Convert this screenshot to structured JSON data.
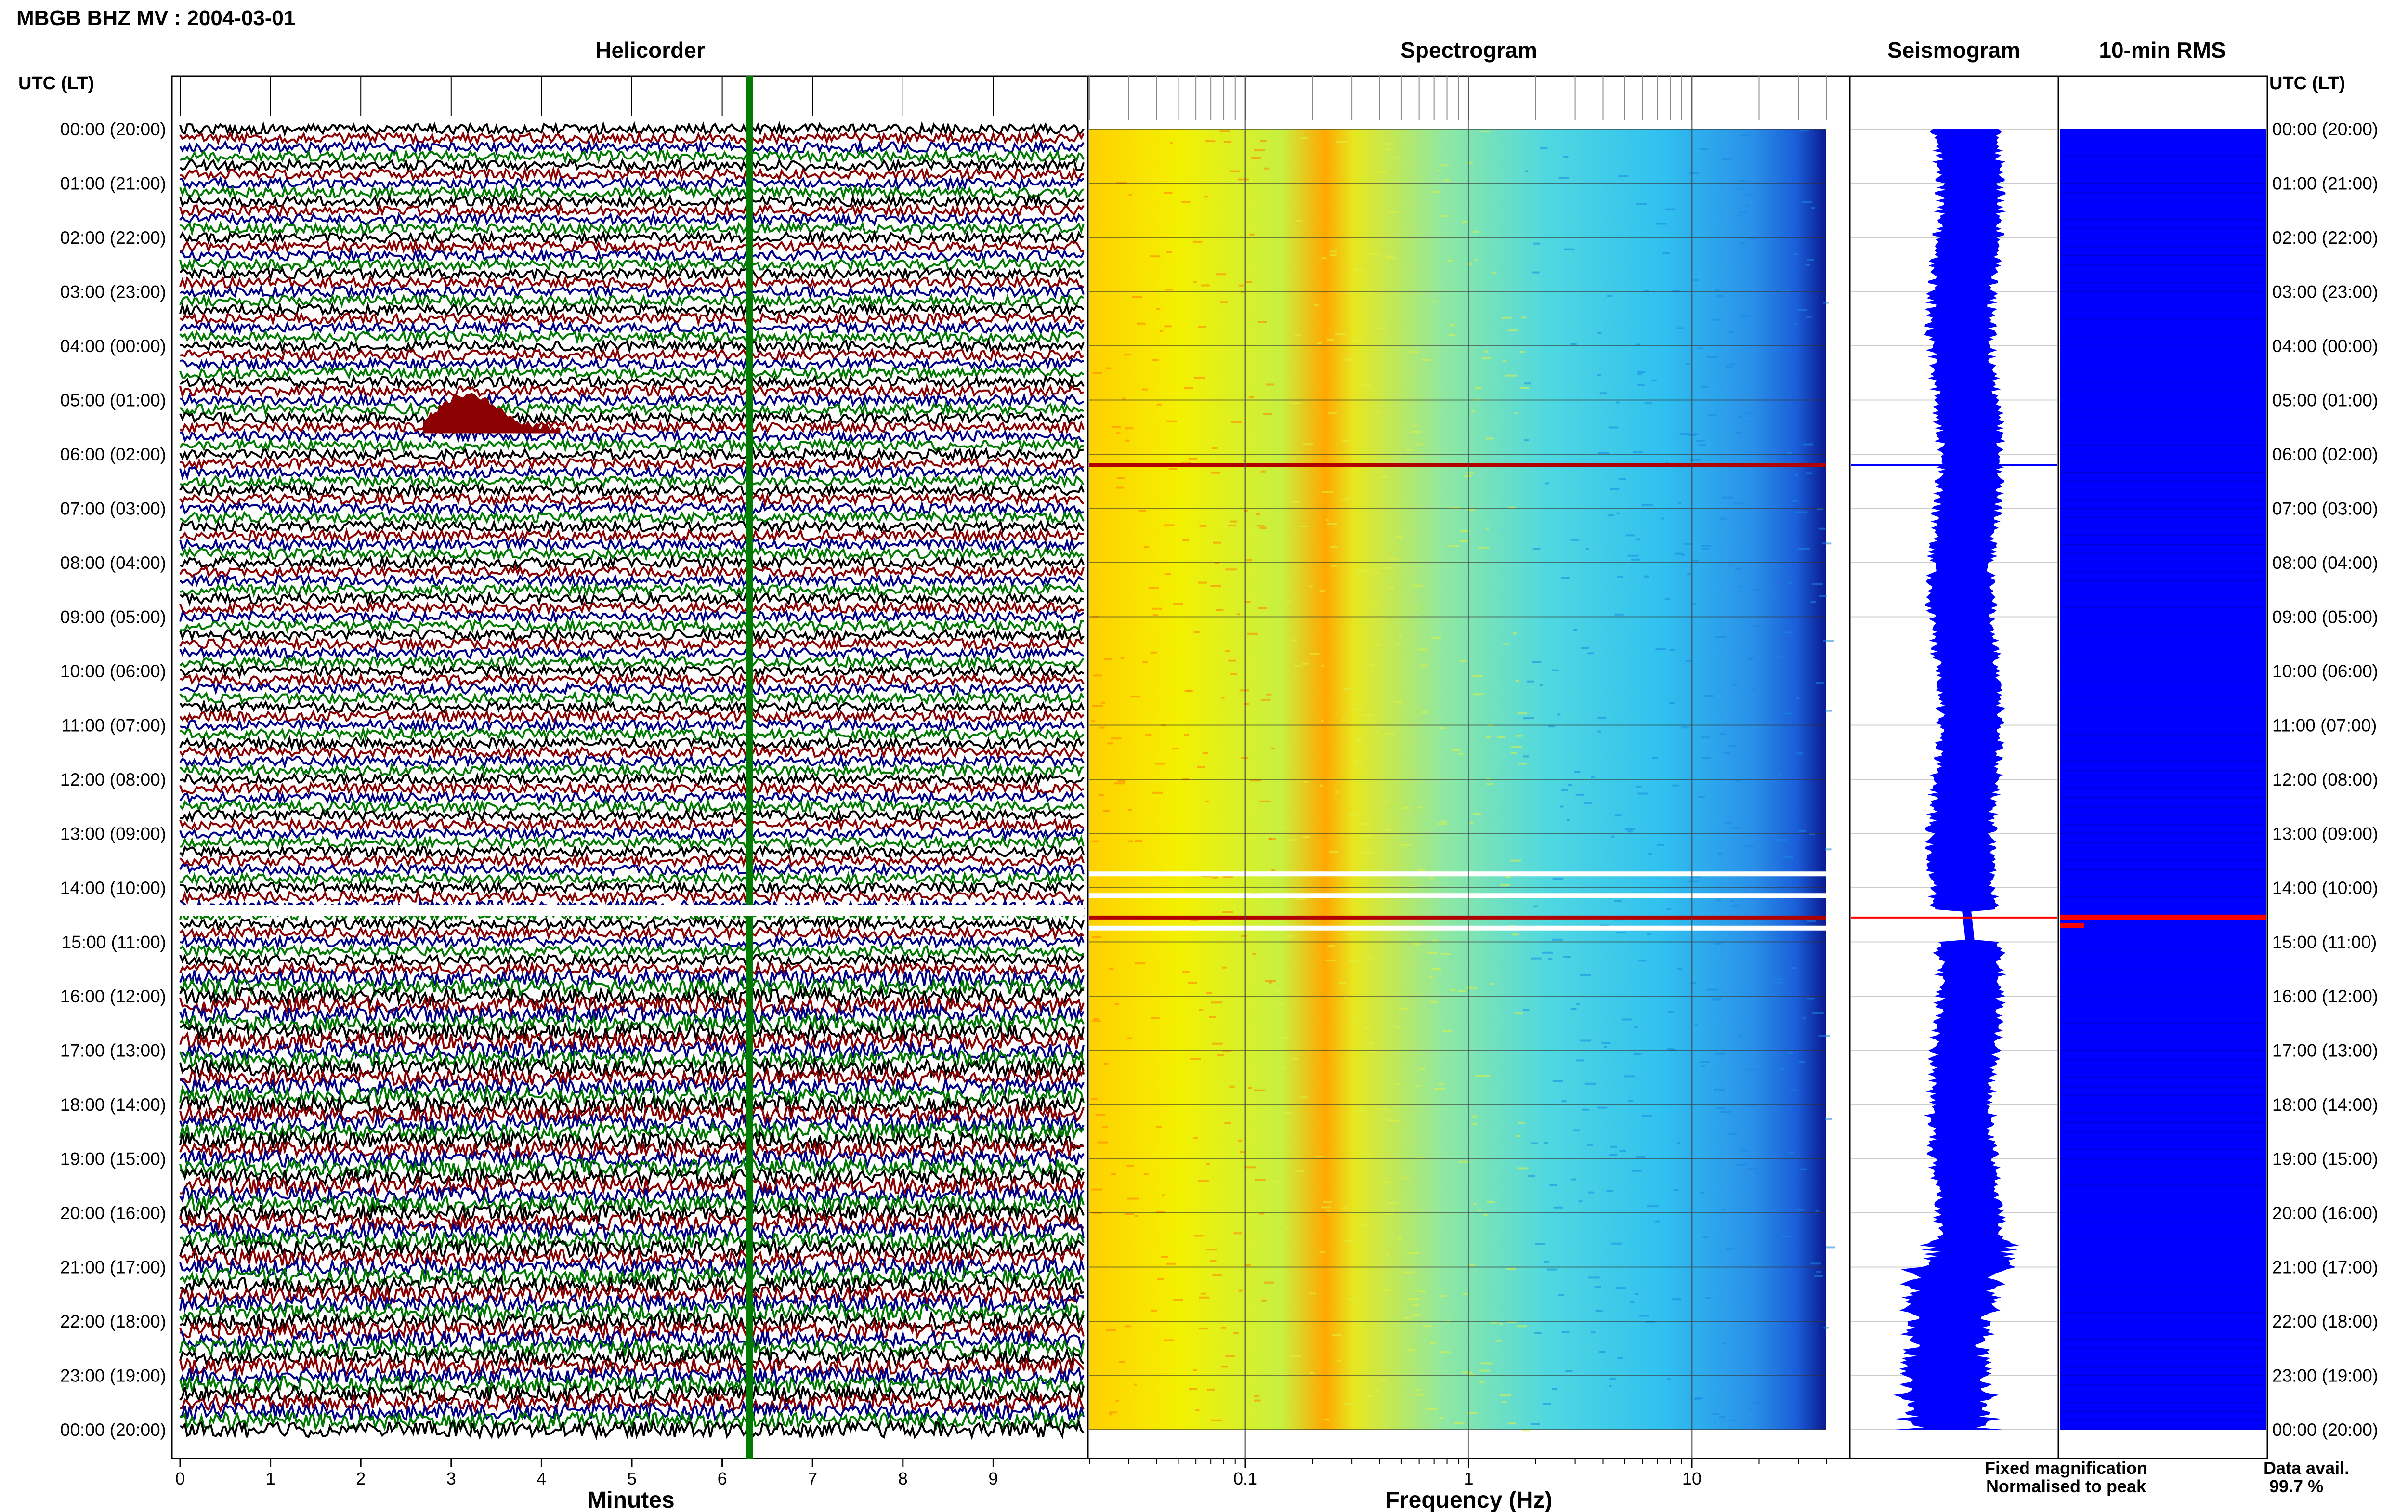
{
  "header": {
    "title": "MBGB BHZ MV : 2004-03-01"
  },
  "colors": {
    "trace_cycle": [
      "#000000",
      "#8b0000",
      "#00008b",
      "#007a00"
    ],
    "fixed_magnification": "#0000ff",
    "normalised_to_peak": "#ff0000"
  },
  "panels": {
    "helicorder": {
      "title": "Helicorder",
      "xlabel": "Minutes",
      "x_ticks": [
        "0",
        "1",
        "2",
        "3",
        "4",
        "5",
        "6",
        "7",
        "8",
        "9"
      ]
    },
    "spectrogram": {
      "title": "Spectrogram",
      "xlabel": "Frequency (Hz)",
      "x_ticks": [
        "0.1",
        "1",
        "10"
      ]
    },
    "seismogram": {
      "title": "Seismogram"
    },
    "rms": {
      "title": "10-min RMS"
    }
  },
  "time_axis": {
    "header": "UTC (LT)",
    "labels": [
      "00:00 (20:00)",
      "01:00 (21:00)",
      "02:00 (22:00)",
      "03:00 (23:00)",
      "04:00 (00:00)",
      "05:00 (01:00)",
      "06:00 (02:00)",
      "07:00 (03:00)",
      "08:00 (04:00)",
      "09:00 (05:00)",
      "10:00 (06:00)",
      "11:00 (07:00)",
      "12:00 (08:00)",
      "13:00 (09:00)",
      "14:00 (10:00)",
      "15:00 (11:00)",
      "16:00 (12:00)",
      "17:00 (13:00)",
      "18:00 (14:00)",
      "19:00 (15:00)",
      "20:00 (16:00)",
      "21:00 (17:00)",
      "22:00 (18:00)",
      "23:00 (19:00)",
      "00:00 (20:00)"
    ]
  },
  "legend": {
    "fixed": "Fixed magnification",
    "normalised": "Normalised to peak",
    "data_avail_label": "Data avail.",
    "data_avail_value": "99.7 %"
  },
  "chart_data": [
    {
      "type": "line",
      "panel": "helicorder",
      "xlabel": "Minutes",
      "xlim": [
        0,
        10
      ],
      "rows_per_hour": 6,
      "hours": 24,
      "events": [
        {
          "hour": 5.6,
          "minute_start": 2.7,
          "minute_end": 4.2,
          "note": "dark red burst"
        },
        {
          "hour": 14.4,
          "minute_start": 0,
          "minute_end": 10,
          "note": "large event"
        }
      ]
    },
    {
      "type": "heatmap",
      "panel": "spectrogram",
      "xlabel": "Frequency (Hz)",
      "x_scale": "log",
      "xlim": [
        0.02,
        40
      ],
      "gaps_hour": [
        13.7,
        14.1,
        14.7
      ],
      "event_hours": [
        6.2,
        14.55
      ]
    },
    {
      "type": "area",
      "panel": "seismogram",
      "event_hours": [
        6.2,
        14.55
      ]
    },
    {
      "type": "bar",
      "panel": "rms",
      "normalised_peak_hours": [
        14.55,
        14.65
      ]
    }
  ]
}
